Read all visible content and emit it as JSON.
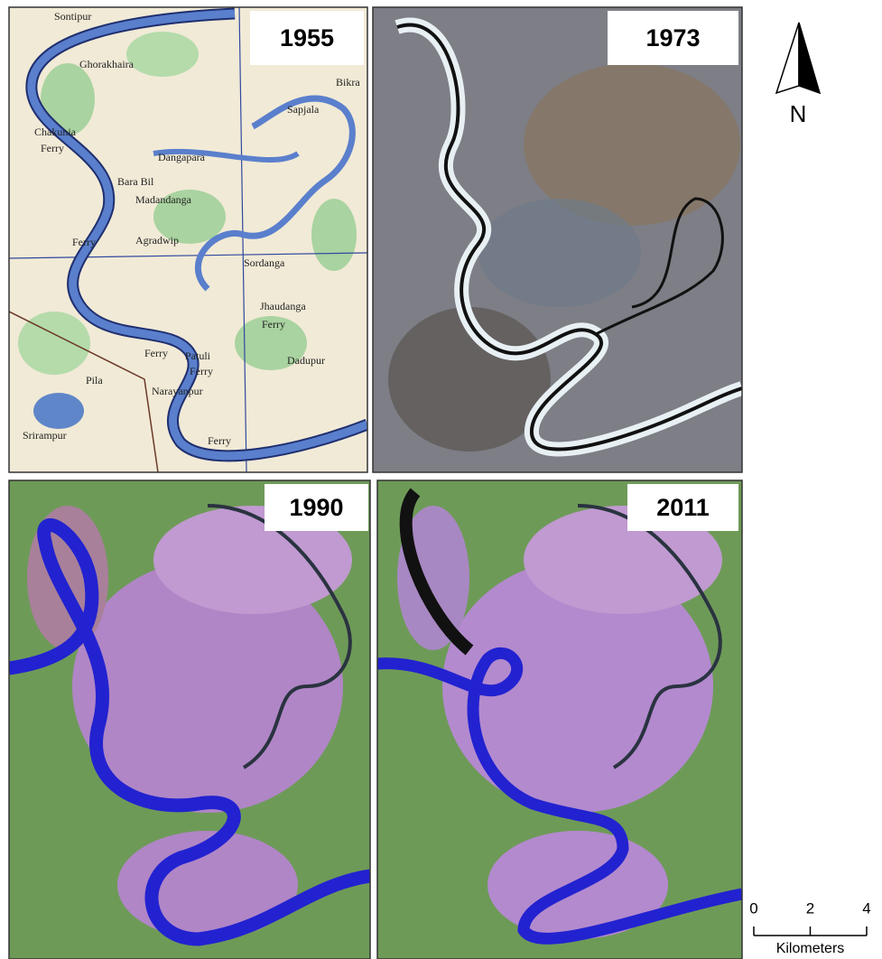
{
  "panels": [
    {
      "year": "1955",
      "map_labels": [
        "Sontipur",
        "Ghorakhaira",
        "Bikra",
        "Sapjala",
        "Chakunia",
        "Ferry",
        "Dangapara",
        "Bara Bil",
        "Madandanga",
        "Agradwip",
        "Ferry",
        "Sordanga",
        "Jhaudanga",
        "Ferry",
        "Ferry",
        "Patuli",
        "Ferry",
        "Dadupur",
        "Narayanpur",
        "Pila",
        "Srirampur",
        "Ferry"
      ]
    },
    {
      "year": "1973"
    },
    {
      "year": "1990"
    },
    {
      "year": "2011"
    }
  ],
  "north_arrow": "N",
  "scale_bar": {
    "ticks": [
      0,
      2,
      4
    ],
    "unit": "Kilometers"
  }
}
